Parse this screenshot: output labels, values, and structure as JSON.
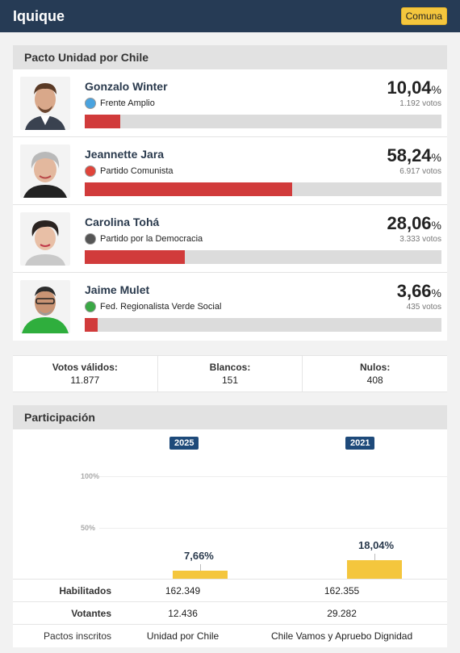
{
  "header": {
    "title": "Iquique",
    "badge": "Comuna"
  },
  "pact": {
    "title": "Pacto Unidad por Chile",
    "candidates": [
      {
        "name": "Gonzalo Winter",
        "party": "Frente Amplio",
        "pct": "10,04",
        "pct_sign": "%",
        "votes": "1.192 votos",
        "share": 10.04,
        "party_color": "#4aa3df"
      },
      {
        "name": "Jeannette Jara",
        "party": "Partido Comunista",
        "pct": "58,24",
        "pct_sign": "%",
        "votes": "6.917 votos",
        "share": 58.24,
        "party_color": "#e0443a"
      },
      {
        "name": "Carolina Tohá",
        "party": "Partido por la Democracia",
        "pct": "28,06",
        "pct_sign": "%",
        "votes": "3.333 votos",
        "share": 28.06,
        "party_color": "#555555"
      },
      {
        "name": "Jaime Mulet",
        "party": "Fed. Regionalista Verde Social",
        "pct": "3,66",
        "pct_sign": "%",
        "votes": "435 votos",
        "share": 3.66,
        "party_color": "#3aa845"
      }
    ]
  },
  "totals": {
    "validos_label": "Votos válidos:",
    "validos": "11.877",
    "blancos_label": "Blancos:",
    "blancos": "151",
    "nulos_label": "Nulos:",
    "nulos": "408"
  },
  "participation": {
    "title": "Participación",
    "grid_100": "100%",
    "grid_50": "50%",
    "years": [
      {
        "year": "2025",
        "pct_label": "7,66%",
        "value": 7.66
      },
      {
        "year": "2021",
        "pct_label": "18,04%",
        "value": 18.04
      }
    ],
    "rows": [
      {
        "label": "Habilitados",
        "v2025": "162.349",
        "v2021": "162.355"
      },
      {
        "label": "Votantes",
        "v2025": "12.436",
        "v2021": "29.282"
      },
      {
        "label": "Pactos inscritos",
        "v2025": "Unidad por Chile",
        "v2021": "Chile Vamos y Apruebo Dignidad"
      }
    ]
  }
}
